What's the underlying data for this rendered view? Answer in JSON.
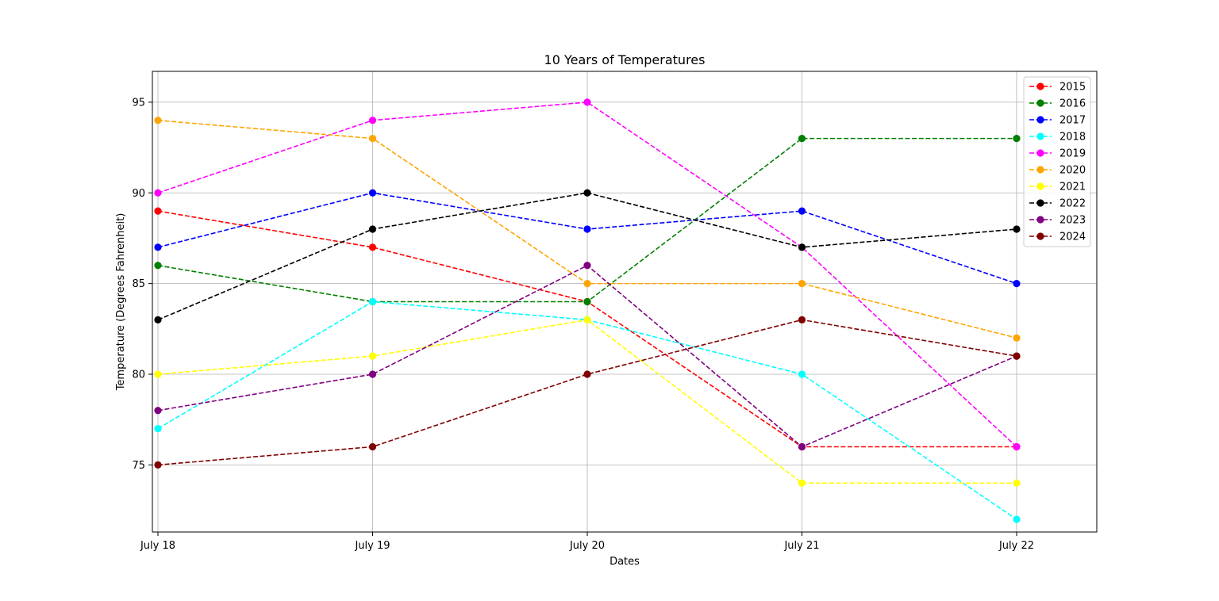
{
  "chart_data": {
    "type": "line",
    "title": "10 Years of Temperatures",
    "xlabel": "Dates",
    "ylabel": "Temperature (Degrees Fahrenheit)",
    "categories": [
      "July 18",
      "July 19",
      "July 20",
      "July 21",
      "July 22"
    ],
    "yticks": [
      75,
      80,
      85,
      90,
      95
    ],
    "ylim": [
      71.3,
      96.7
    ],
    "grid": true,
    "line_style": "dashed",
    "marker": "circle",
    "legend_position": "top-right",
    "series": [
      {
        "name": "2015",
        "color": "#ff0000",
        "values": [
          89,
          87,
          84,
          76,
          76
        ]
      },
      {
        "name": "2016",
        "color": "#008000",
        "values": [
          86,
          84,
          84,
          93,
          93
        ]
      },
      {
        "name": "2017",
        "color": "#0000ff",
        "values": [
          87,
          90,
          88,
          89,
          85
        ]
      },
      {
        "name": "2018",
        "color": "#00ffff",
        "values": [
          77,
          84,
          83,
          80,
          72
        ]
      },
      {
        "name": "2019",
        "color": "#ff00ff",
        "values": [
          90,
          94,
          95,
          87,
          76
        ]
      },
      {
        "name": "2020",
        "color": "#ffa500",
        "values": [
          94,
          93,
          85,
          85,
          82
        ]
      },
      {
        "name": "2021",
        "color": "#ffff00",
        "values": [
          80,
          81,
          83,
          74,
          74
        ]
      },
      {
        "name": "2022",
        "color": "#000000",
        "values": [
          83,
          88,
          90,
          87,
          88
        ]
      },
      {
        "name": "2023",
        "color": "#800080",
        "values": [
          78,
          80,
          86,
          76,
          81
        ]
      },
      {
        "name": "2024",
        "color": "#800000",
        "values": [
          75,
          76,
          80,
          83,
          81
        ]
      }
    ]
  }
}
